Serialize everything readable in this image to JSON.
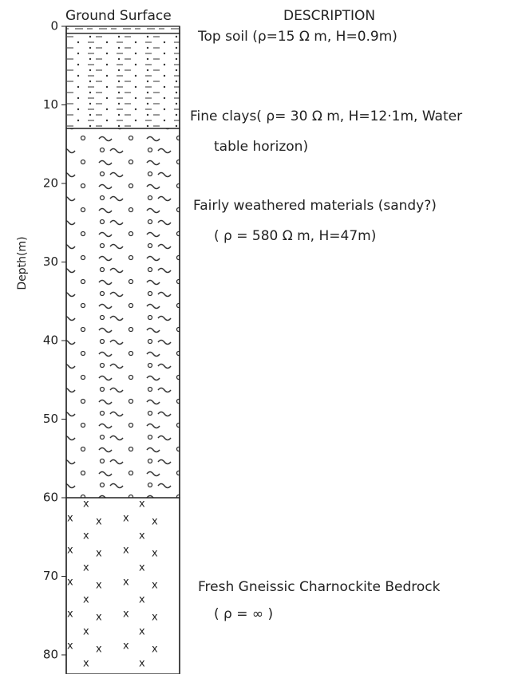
{
  "header": {
    "ground_surface": "Ground Surface",
    "description": "DESCRIPTION"
  },
  "axis": {
    "label": "Depth(m)",
    "ylim": [
      0,
      80
    ],
    "yticks": [
      0,
      10,
      20,
      30,
      40,
      50,
      60,
      70,
      80
    ]
  },
  "layers": [
    {
      "top": 0,
      "description": [
        "Top soil (ρ=15 Ω m, H=0.9m)"
      ]
    },
    {
      "top": 0.9,
      "description": [
        "Fine clays( ρ= 30 Ω m, H=12·1m, Water",
        "table horizon)"
      ]
    },
    {
      "top": 13,
      "description": [
        "Fairly weathered materials (sandy?)",
        "( ρ = 580 Ω m, H=47m)"
      ]
    },
    {
      "top": 60,
      "description": [
        "Fresh Gneissic Charnockite Bedrock",
        "( ρ = ∞ )"
      ]
    }
  ]
}
